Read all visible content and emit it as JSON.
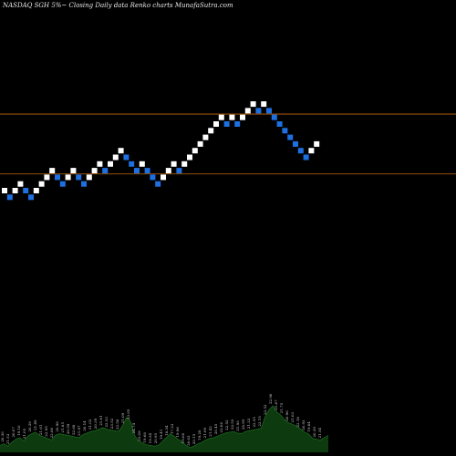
{
  "chart_data": {
    "type": "renko",
    "title": "NASDAQ SGH 5%~  Closing Daily data  Renko  charts MunafaSutra.com",
    "up_color": "#ffffff",
    "down_color": "#1e6fe0",
    "line_color": "#c46a10",
    "volume_color": "#0e3a10",
    "volume_outline": "#1f7a22",
    "bricks": [
      {
        "dir": "up",
        "y": 0
      },
      {
        "dir": "down",
        "y": -1
      },
      {
        "dir": "up",
        "y": 0
      },
      {
        "dir": "up",
        "y": 1
      },
      {
        "dir": "down",
        "y": 0
      },
      {
        "dir": "down",
        "y": -1
      },
      {
        "dir": "up",
        "y": 0
      },
      {
        "dir": "up",
        "y": 1
      },
      {
        "dir": "up",
        "y": 2
      },
      {
        "dir": "up",
        "y": 3
      },
      {
        "dir": "down",
        "y": 2
      },
      {
        "dir": "down",
        "y": 1
      },
      {
        "dir": "up",
        "y": 2
      },
      {
        "dir": "up",
        "y": 3
      },
      {
        "dir": "down",
        "y": 2
      },
      {
        "dir": "down",
        "y": 1
      },
      {
        "dir": "up",
        "y": 2
      },
      {
        "dir": "up",
        "y": 3
      },
      {
        "dir": "up",
        "y": 4
      },
      {
        "dir": "down",
        "y": 3
      },
      {
        "dir": "up",
        "y": 4
      },
      {
        "dir": "up",
        "y": 5
      },
      {
        "dir": "up",
        "y": 6
      },
      {
        "dir": "down",
        "y": 5
      },
      {
        "dir": "down",
        "y": 4
      },
      {
        "dir": "down",
        "y": 3
      },
      {
        "dir": "up",
        "y": 4
      },
      {
        "dir": "down",
        "y": 3
      },
      {
        "dir": "down",
        "y": 2
      },
      {
        "dir": "down",
        "y": 1
      },
      {
        "dir": "up",
        "y": 2
      },
      {
        "dir": "up",
        "y": 3
      },
      {
        "dir": "up",
        "y": 4
      },
      {
        "dir": "down",
        "y": 3
      },
      {
        "dir": "up",
        "y": 4
      },
      {
        "dir": "up",
        "y": 5
      },
      {
        "dir": "up",
        "y": 6
      },
      {
        "dir": "up",
        "y": 7
      },
      {
        "dir": "up",
        "y": 8
      },
      {
        "dir": "up",
        "y": 9
      },
      {
        "dir": "up",
        "y": 10
      },
      {
        "dir": "up",
        "y": 11
      },
      {
        "dir": "down",
        "y": 10
      },
      {
        "dir": "up",
        "y": 11
      },
      {
        "dir": "down",
        "y": 10
      },
      {
        "dir": "up",
        "y": 11
      },
      {
        "dir": "up",
        "y": 12
      },
      {
        "dir": "up",
        "y": 13
      },
      {
        "dir": "down",
        "y": 12
      },
      {
        "dir": "up",
        "y": 13
      },
      {
        "dir": "down",
        "y": 12
      },
      {
        "dir": "down",
        "y": 11
      },
      {
        "dir": "down",
        "y": 10
      },
      {
        "dir": "down",
        "y": 9
      },
      {
        "dir": "down",
        "y": 8
      },
      {
        "dir": "down",
        "y": 7
      },
      {
        "dir": "down",
        "y": 6
      },
      {
        "dir": "down",
        "y": 5
      },
      {
        "dir": "up",
        "y": 6
      },
      {
        "dir": "up",
        "y": 7
      }
    ],
    "levels": [
      {
        "y": 11.5
      },
      {
        "y": 2.5
      }
    ],
    "volume": [
      9,
      11,
      8,
      13,
      17,
      19,
      15,
      21,
      24,
      26,
      22,
      20,
      18,
      16,
      22,
      24,
      23,
      22,
      21,
      20,
      19,
      23,
      25,
      27,
      28,
      30,
      32,
      30,
      29,
      28,
      27,
      35,
      45,
      40,
      22,
      15,
      12,
      10,
      9,
      8,
      9,
      14,
      19,
      24,
      21,
      17,
      14,
      9,
      6,
      8,
      11,
      13,
      16,
      18,
      19,
      21,
      23,
      25,
      26,
      27,
      25,
      24,
      27,
      28,
      29,
      30,
      31,
      46,
      55,
      60,
      52,
      48,
      42,
      38,
      36,
      34,
      30,
      26,
      24,
      18,
      17,
      16,
      19,
      22
    ],
    "volume_labels": [
      "20.36",
      "21.53",
      "20.07",
      "19.16",
      "21.05",
      "20.39",
      "21.49",
      "21.61",
      "22.95",
      "22.06",
      "20.98",
      "21.85",
      "20.59",
      "22.68",
      "21.97",
      "20.14",
      "21.02",
      "20.39",
      "21.61",
      "22.53",
      "23.52",
      "22.58",
      "21.09",
      "23.05",
      "24.74",
      "25.09",
      "19.68",
      "19.54",
      "20.95",
      "19.41",
      "18.34",
      "17.23",
      "19.96",
      "19.08",
      "20.03",
      "20.15",
      "19.28",
      "21.09",
      "21.42",
      "20.45",
      "22.06",
      "22.52",
      "22.53",
      "21.93",
      "20.95",
      "21.33",
      "22.55",
      "23.15",
      "23.52",
      "22.96",
      "21.67",
      "21.75",
      "20.96",
      "21.03",
      "22.18",
      "20.93",
      "19.84",
      "20.39",
      "21.54"
    ]
  }
}
